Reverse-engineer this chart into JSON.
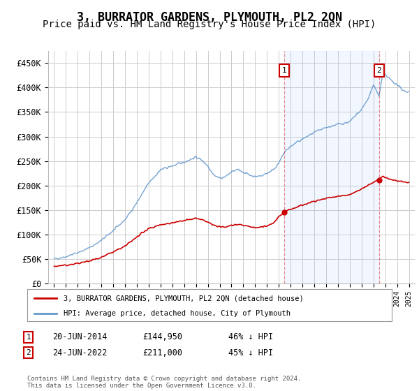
{
  "title": "3, BURRATOR GARDENS, PLYMOUTH, PL2 2QN",
  "subtitle": "Price paid vs. HM Land Registry's House Price Index (HPI)",
  "title_fontsize": 12,
  "subtitle_fontsize": 10,
  "background_color": "#ffffff",
  "grid_color": "#cccccc",
  "hpi_color": "#6699cc",
  "price_color": "#cc0000",
  "shade_color": "#ddeeff",
  "ylim": [
    0,
    475000
  ],
  "yticks": [
    0,
    50000,
    100000,
    150000,
    200000,
    250000,
    300000,
    350000,
    400000,
    450000
  ],
  "ytick_labels": [
    "£0",
    "£50K",
    "£100K",
    "£150K",
    "£200K",
    "£250K",
    "£300K",
    "£350K",
    "£400K",
    "£450K"
  ],
  "sale1_date_num": 2014.47,
  "sale1_price": 144950,
  "sale1_label": "1",
  "sale2_date_num": 2022.48,
  "sale2_price": 211000,
  "sale2_label": "2",
  "legend_line1": "3, BURRATOR GARDENS, PLYMOUTH, PL2 2QN (detached house)",
  "legend_line2": "HPI: Average price, detached house, City of Plymouth",
  "table_row1": [
    "1",
    "20-JUN-2014",
    "£144,950",
    "46% ↓ HPI"
  ],
  "table_row2": [
    "2",
    "24-JUN-2022",
    "£211,000",
    "45% ↓ HPI"
  ],
  "footnote": "Contains HM Land Registry data © Crown copyright and database right 2024.\nThis data is licensed under the Open Government Licence v3.0.",
  "xmin": 1994.5,
  "xmax": 2025.5
}
